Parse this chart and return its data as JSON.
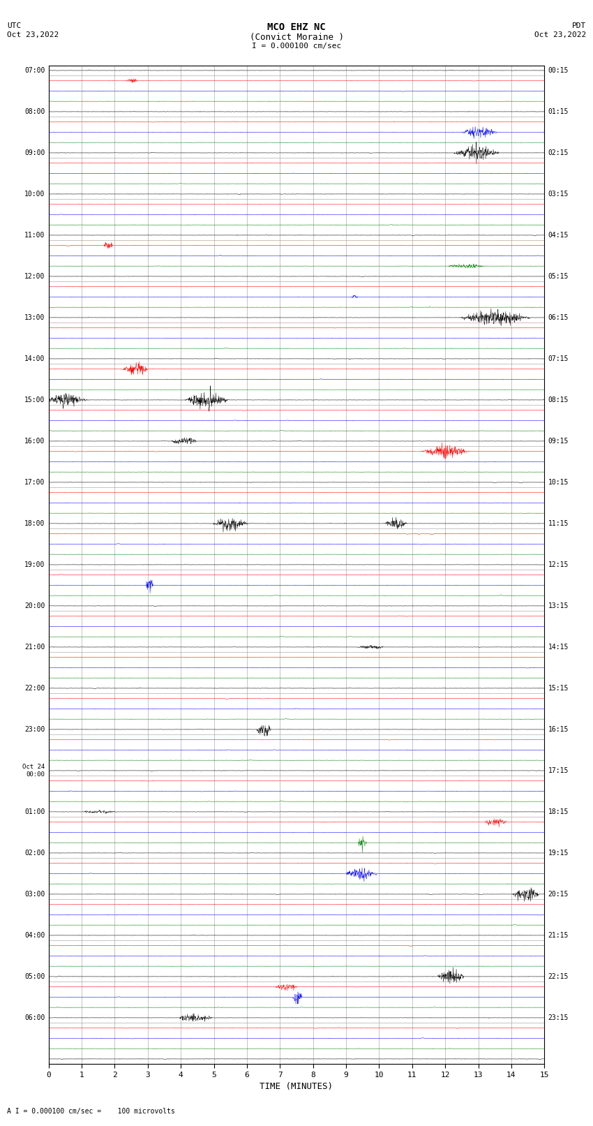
{
  "title_line1": "MCO EHZ NC",
  "title_line2": "(Convict Moraine )",
  "scale_label": "I = 0.000100 cm/sec",
  "footer_label": "A I = 0.000100 cm/sec =    100 microvolts",
  "utc_label": "UTC",
  "utc_date": "Oct 23,2022",
  "pdt_label": "PDT",
  "pdt_date": "Oct 23,2022",
  "xlabel": "TIME (MINUTES)",
  "xlim": [
    0,
    15
  ],
  "xticks": [
    0,
    1,
    2,
    3,
    4,
    5,
    6,
    7,
    8,
    9,
    10,
    11,
    12,
    13,
    14,
    15
  ],
  "trace_colors_cycle": [
    "black",
    "red",
    "blue",
    "green"
  ],
  "background_color": "white",
  "grid_color": "#999999",
  "n_traces": 97,
  "base_noise_amp": 0.008,
  "seed": 12345,
  "left_labels": [
    [
      0,
      "07:00"
    ],
    [
      4,
      "08:00"
    ],
    [
      8,
      "09:00"
    ],
    [
      12,
      "10:00"
    ],
    [
      16,
      "11:00"
    ],
    [
      20,
      "12:00"
    ],
    [
      24,
      "13:00"
    ],
    [
      28,
      "14:00"
    ],
    [
      32,
      "15:00"
    ],
    [
      36,
      "16:00"
    ],
    [
      40,
      "17:00"
    ],
    [
      44,
      "18:00"
    ],
    [
      48,
      "19:00"
    ],
    [
      52,
      "20:00"
    ],
    [
      56,
      "21:00"
    ],
    [
      60,
      "22:00"
    ],
    [
      64,
      "23:00"
    ],
    [
      68,
      "Oct 24\n00:00"
    ],
    [
      72,
      "01:00"
    ],
    [
      76,
      "02:00"
    ],
    [
      80,
      "03:00"
    ],
    [
      84,
      "04:00"
    ],
    [
      88,
      "05:00"
    ],
    [
      92,
      "06:00"
    ]
  ],
  "right_labels": [
    [
      0,
      "00:15"
    ],
    [
      4,
      "01:15"
    ],
    [
      8,
      "02:15"
    ],
    [
      12,
      "03:15"
    ],
    [
      16,
      "04:15"
    ],
    [
      20,
      "05:15"
    ],
    [
      24,
      "06:15"
    ],
    [
      28,
      "07:15"
    ],
    [
      32,
      "08:15"
    ],
    [
      36,
      "09:15"
    ],
    [
      40,
      "10:15"
    ],
    [
      44,
      "11:15"
    ],
    [
      48,
      "12:15"
    ],
    [
      52,
      "13:15"
    ],
    [
      56,
      "14:15"
    ],
    [
      60,
      "15:15"
    ],
    [
      64,
      "16:15"
    ],
    [
      68,
      "17:15"
    ],
    [
      72,
      "18:15"
    ],
    [
      76,
      "19:15"
    ],
    [
      80,
      "20:15"
    ],
    [
      84,
      "21:15"
    ],
    [
      88,
      "22:15"
    ],
    [
      92,
      "23:15"
    ]
  ]
}
